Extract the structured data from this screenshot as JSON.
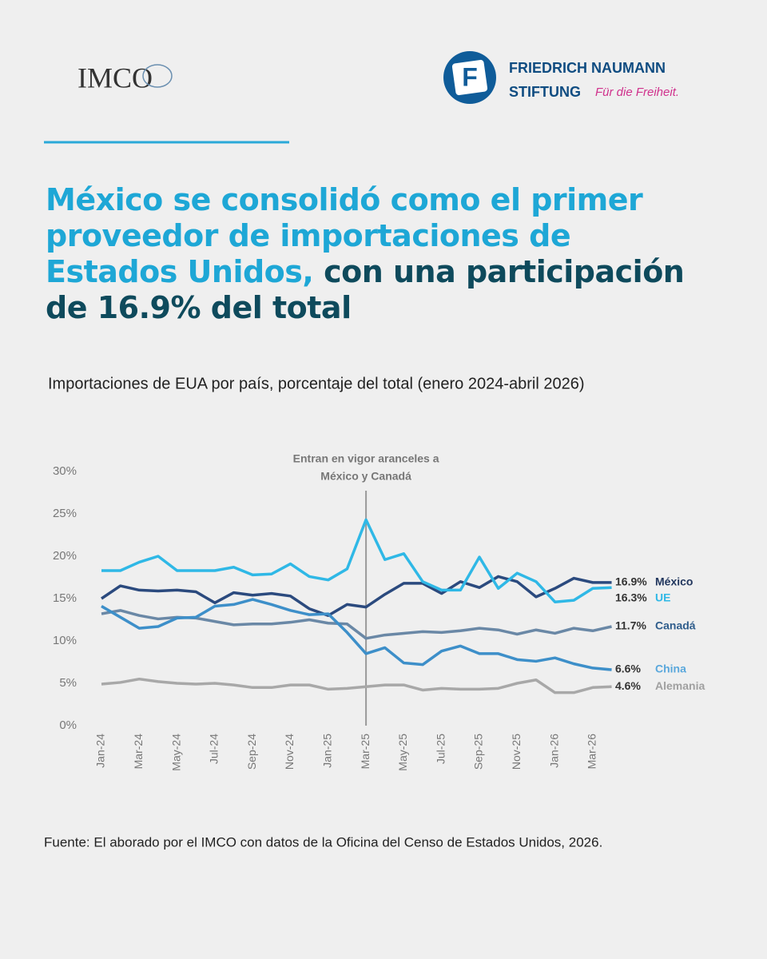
{
  "header": {
    "logo_left": "IMCO",
    "logo_right": {
      "line1": "FRIEDRICH NAUMANN",
      "line2": "STIFTUNG",
      "tagline": "Für die Freiheit."
    }
  },
  "title": {
    "highlight": [
      "México se consolidó como el primer",
      "proveedor de importaciones de",
      "Estados Unidos,"
    ],
    "rest": [
      "con una participación",
      "de 16.9% del total"
    ]
  },
  "chart_data": {
    "type": "line",
    "title": "Importaciones de EUA por país, porcentaje del total (enero 2024-abril 2026)",
    "categories": [
      "Jan-24",
      null,
      "Mar-24",
      null,
      "May-24",
      null,
      "Jul-24",
      null,
      "Sep-24",
      null,
      "Nov-24",
      null,
      "Jan-25",
      null,
      "Mar-25",
      null,
      "May-25",
      null,
      "Jul-25",
      null,
      "Sep-25",
      null,
      "Nov-25",
      null,
      "Jan-26",
      null,
      "Mar-26",
      null
    ],
    "ylim": [
      0,
      30
    ],
    "yticks": [
      {
        "value": 0,
        "label": "0%"
      },
      {
        "value": 5,
        "label": "5%"
      },
      {
        "value": 10,
        "label": "10%"
      },
      {
        "value": 15,
        "label": "15%"
      },
      {
        "value": 20,
        "label": "20%"
      },
      {
        "value": 25,
        "label": "25%"
      },
      {
        "value": 30,
        "label": "30%"
      }
    ],
    "grid": false,
    "annotation": {
      "category_index": 14,
      "lines": [
        "Entran en vigor aranceles a",
        "México y Canadá"
      ]
    },
    "series": [
      {
        "name": "México",
        "color": "#2b4a7e",
        "label_color": "#22375e",
        "values": [
          15,
          16.5,
          16,
          15.9,
          16,
          15.8,
          14.5,
          15.7,
          15.4,
          15.6,
          15.3,
          13.8,
          13,
          14.3,
          14,
          15.5,
          16.8,
          16.8,
          15.6,
          17,
          16.3,
          17.6,
          17,
          15.2,
          16.2,
          17.4,
          16.9,
          16.9
        ],
        "value_labels": [
          null,
          null,
          null,
          null,
          null,
          null,
          null,
          null,
          null,
          null,
          null,
          null,
          null,
          null,
          null,
          null,
          null,
          null,
          null,
          null,
          null,
          null,
          null,
          null,
          null,
          null,
          null,
          "16.9%"
        ]
      },
      {
        "name": "UE",
        "color": "#2fb8e6",
        "label_color": "#2fb8e6",
        "values": [
          18.3,
          18.3,
          19.3,
          20,
          18.3,
          18.3,
          18.3,
          18.7,
          17.8,
          17.9,
          19.1,
          17.6,
          17.2,
          18.5,
          24.3,
          19.6,
          20.3,
          17,
          16,
          16,
          19.9,
          16.2,
          18,
          17,
          14.6,
          14.8,
          16.2,
          16.3
        ],
        "value_labels": [
          null,
          null,
          null,
          null,
          null,
          null,
          null,
          null,
          null,
          null,
          null,
          null,
          null,
          null,
          null,
          null,
          null,
          null,
          null,
          null,
          null,
          null,
          null,
          null,
          null,
          null,
          null,
          "16.3%"
        ]
      },
      {
        "name": "Canadá",
        "color": "#6a88a6",
        "label_color": "#2f5d8c",
        "values": [
          13.2,
          13.6,
          13,
          12.6,
          12.8,
          12.7,
          12.3,
          11.9,
          12,
          12,
          12.2,
          12.5,
          12.1,
          12,
          10.3,
          10.7,
          10.9,
          11.1,
          11,
          11.2,
          11.5,
          11.3,
          10.8,
          11.3,
          10.9,
          11.5,
          11.2,
          11.7
        ],
        "value_labels": [
          null,
          null,
          null,
          null,
          null,
          null,
          null,
          null,
          null,
          null,
          null,
          null,
          null,
          null,
          null,
          null,
          null,
          null,
          null,
          null,
          null,
          null,
          null,
          null,
          null,
          null,
          null,
          "11.7%"
        ]
      },
      {
        "name": "China",
        "color": "#3d8fc9",
        "label_color": "#5aa8dc",
        "values": [
          14.1,
          12.8,
          11.5,
          11.7,
          12.7,
          12.8,
          14.1,
          14.3,
          14.9,
          14.3,
          13.6,
          13.1,
          13.2,
          11,
          8.5,
          9.2,
          7.4,
          7.2,
          8.8,
          9.4,
          8.5,
          8.5,
          7.8,
          7.6,
          8,
          7.3,
          6.8,
          6.6
        ],
        "value_labels": [
          null,
          null,
          null,
          null,
          null,
          null,
          null,
          null,
          null,
          null,
          null,
          null,
          null,
          null,
          null,
          null,
          null,
          null,
          null,
          null,
          null,
          null,
          null,
          null,
          null,
          null,
          null,
          "6.6%"
        ]
      },
      {
        "name": "Alemania",
        "color": "#a8a8a8",
        "label_color": "#a0a0a0",
        "values": [
          4.9,
          5.1,
          5.5,
          5.2,
          5,
          4.9,
          5,
          4.8,
          4.5,
          4.5,
          4.8,
          4.8,
          4.3,
          4.4,
          4.6,
          4.8,
          4.8,
          4.2,
          4.4,
          4.3,
          4.3,
          4.4,
          5,
          5.4,
          3.9,
          3.9,
          4.5,
          4.6
        ],
        "value_labels": [
          null,
          null,
          null,
          null,
          null,
          null,
          null,
          null,
          null,
          null,
          null,
          null,
          null,
          null,
          null,
          null,
          null,
          null,
          null,
          null,
          null,
          null,
          null,
          null,
          null,
          null,
          null,
          "4.6%"
        ]
      }
    ],
    "source": "Fuente: El aborado por el IMCO con datos de la Oficina del Censo de Estados Unidos, 2026."
  }
}
